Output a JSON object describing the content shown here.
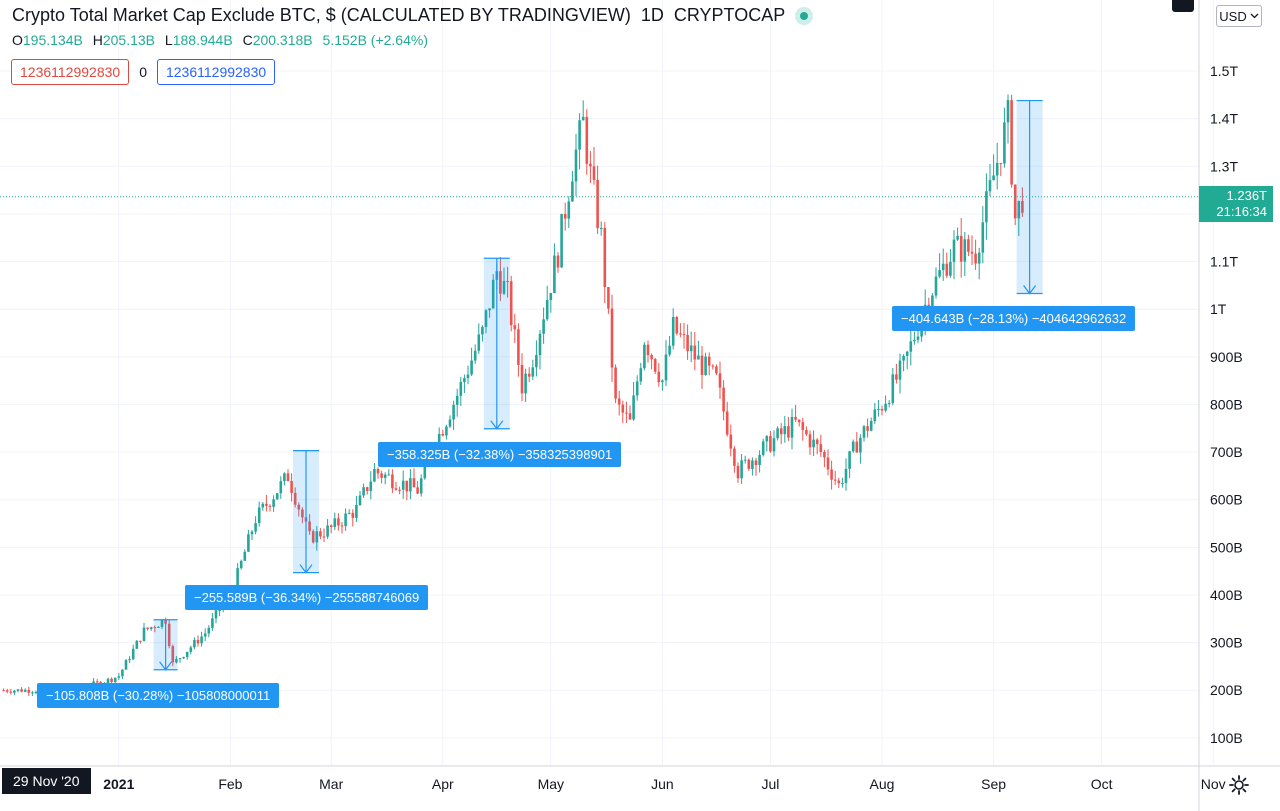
{
  "header": {
    "title": "Crypto Total Market Cap Exclude BTC, $ (CALCULATED BY TRADINGVIEW)",
    "interval": "1D",
    "symbol": "CRYPTOCAP",
    "ohlc": [
      {
        "key": "O",
        "value": "195.134B"
      },
      {
        "key": "H",
        "value": "205.13B"
      },
      {
        "key": "L",
        "value": "188.944B"
      },
      {
        "key": "C",
        "value": "200.318B"
      }
    ],
    "change": "5.152B (+2.64%)",
    "inputs": [
      "1236112992830",
      "0",
      "1236112992830"
    ],
    "currency": "USD"
  },
  "price_tag": {
    "price": "1.236T",
    "countdown": "21:16:34"
  },
  "crosshair_date": "29 Nov '20",
  "colors": {
    "up": "#26a69a",
    "down": "#ef5350",
    "measure": "#2196f3",
    "grid": "#f0f3fa"
  },
  "icons": {
    "settings": "gear-icon",
    "currency_dropdown": "chevron-down-icon"
  },
  "measurements": [
    {
      "label": "−105.808B (−30.28%) −105808000011",
      "x_date": "2021-01-14",
      "from": 348,
      "to": 243
    },
    {
      "label": "−255.589B (−36.34%) −255588746069",
      "x_date": "2021-02-22",
      "from": 703,
      "to": 447
    },
    {
      "label": "−358.325B (−32.38%) −358325398901",
      "x_date": "2021-04-16",
      "from": 1107,
      "to": 749
    },
    {
      "label": "−404.643B (−28.13%) −404642962632",
      "x_date": "2021-09-11",
      "from": 1438,
      "to": 1033
    }
  ],
  "chart_data": {
    "type": "candlestick",
    "title": "Crypto Total Market Cap Exclude BTC, $ (CALCULATED BY TRADINGVIEW)",
    "unit": "billion USD",
    "x_ticks": [
      "2021",
      "Feb",
      "Mar",
      "Apr",
      "May",
      "Jun",
      "Jul",
      "Aug",
      "Sep",
      "Oct",
      "Nov"
    ],
    "y_ticks": [
      "100B",
      "200B",
      "300B",
      "400B",
      "500B",
      "600B",
      "700B",
      "800B",
      "900B",
      "1T",
      "1.1T",
      "1.2T",
      "1.3T",
      "1.4T",
      "1.5T"
    ],
    "ylim": [
      50,
      1580
    ],
    "xlim": [
      "2020-11-29",
      "2021-11-05"
    ],
    "grid": true,
    "last_close": 1236,
    "close_path": [
      {
        "date": "2020-11-29",
        "value": 200
      },
      {
        "date": "2020-12-15",
        "value": 200
      },
      {
        "date": "2020-12-27",
        "value": 215
      },
      {
        "date": "2021-01-01",
        "value": 230
      },
      {
        "date": "2021-01-08",
        "value": 325
      },
      {
        "date": "2021-01-14",
        "value": 348
      },
      {
        "date": "2021-01-16",
        "value": 255
      },
      {
        "date": "2021-01-25",
        "value": 320
      },
      {
        "date": "2021-02-02",
        "value": 420
      },
      {
        "date": "2021-02-08",
        "value": 560
      },
      {
        "date": "2021-02-17",
        "value": 650
      },
      {
        "date": "2021-02-23",
        "value": 520
      },
      {
        "date": "2021-03-01",
        "value": 540
      },
      {
        "date": "2021-03-08",
        "value": 580
      },
      {
        "date": "2021-03-13",
        "value": 660
      },
      {
        "date": "2021-03-25",
        "value": 620
      },
      {
        "date": "2021-03-30",
        "value": 720
      },
      {
        "date": "2021-04-05",
        "value": 820
      },
      {
        "date": "2021-04-12",
        "value": 950
      },
      {
        "date": "2021-04-16",
        "value": 1080
      },
      {
        "date": "2021-04-19",
        "value": 1030
      },
      {
        "date": "2021-04-23",
        "value": 840
      },
      {
        "date": "2021-04-26",
        "value": 900
      },
      {
        "date": "2021-05-03",
        "value": 1120
      },
      {
        "date": "2021-05-07",
        "value": 1300
      },
      {
        "date": "2021-05-10",
        "value": 1390
      },
      {
        "date": "2021-05-12",
        "value": 1280
      },
      {
        "date": "2021-05-15",
        "value": 1150
      },
      {
        "date": "2021-05-19",
        "value": 800
      },
      {
        "date": "2021-05-23",
        "value": 760
      },
      {
        "date": "2021-05-27",
        "value": 940
      },
      {
        "date": "2021-06-01",
        "value": 850
      },
      {
        "date": "2021-06-04",
        "value": 960
      },
      {
        "date": "2021-06-10",
        "value": 900
      },
      {
        "date": "2021-06-16",
        "value": 850
      },
      {
        "date": "2021-06-22",
        "value": 660
      },
      {
        "date": "2021-07-01",
        "value": 720
      },
      {
        "date": "2021-07-08",
        "value": 760
      },
      {
        "date": "2021-07-15",
        "value": 700
      },
      {
        "date": "2021-07-20",
        "value": 630
      },
      {
        "date": "2021-07-25",
        "value": 720
      },
      {
        "date": "2021-08-01",
        "value": 800
      },
      {
        "date": "2021-08-07",
        "value": 880
      },
      {
        "date": "2021-08-14",
        "value": 1030
      },
      {
        "date": "2021-08-21",
        "value": 1130
      },
      {
        "date": "2021-08-27",
        "value": 1120
      },
      {
        "date": "2021-09-01",
        "value": 1280
      },
      {
        "date": "2021-09-05",
        "value": 1400
      },
      {
        "date": "2021-09-07",
        "value": 1190
      },
      {
        "date": "2021-09-09",
        "value": 1236
      }
    ]
  }
}
